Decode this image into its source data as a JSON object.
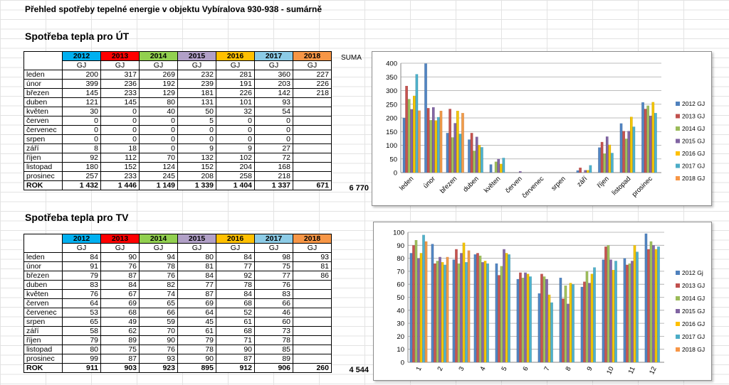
{
  "page_title": "Přehled spotřeby  tepelné energie v objektu Vybíralova 930-938 - sumárně",
  "suma_label": "SUMA",
  "years": [
    {
      "label": "2012",
      "color": "#00b0f0"
    },
    {
      "label": "2013",
      "color": "#ff0000"
    },
    {
      "label": "2014",
      "color": "#92d050"
    },
    {
      "label": "2015",
      "color": "#b1a0c7"
    },
    {
      "label": "2016",
      "color": "#ffc000"
    },
    {
      "label": "2017",
      "color": "#8ccbe6"
    },
    {
      "label": "2018",
      "color": "#f79646"
    }
  ],
  "unit": "GJ",
  "total_label": "ROK",
  "ut": {
    "title": "Spotřeba tepla pro ÚT",
    "rows": [
      {
        "month": "leden",
        "values": [
          "200",
          "317",
          "269",
          "232",
          "281",
          "360",
          "227"
        ]
      },
      {
        "month": "únor",
        "values": [
          "399",
          "236",
          "192",
          "239",
          "191",
          "203",
          "226"
        ]
      },
      {
        "month": "březen",
        "values": [
          "145",
          "233",
          "129",
          "181",
          "226",
          "142",
          "218"
        ]
      },
      {
        "month": "duben",
        "values": [
          "121",
          "145",
          "80",
          "131",
          "101",
          "93",
          ""
        ]
      },
      {
        "month": "květen",
        "values": [
          "30",
          "0",
          "40",
          "50",
          "32",
          "54",
          ""
        ]
      },
      {
        "month": "červen",
        "values": [
          "0",
          "0",
          "0",
          "5",
          "0",
          "0",
          ""
        ]
      },
      {
        "month": "červenec",
        "values": [
          "0",
          "0",
          "0",
          "0",
          "0",
          "0",
          ""
        ]
      },
      {
        "month": "srpen",
        "values": [
          "0",
          "0",
          "0",
          "0",
          "0",
          "0",
          ""
        ]
      },
      {
        "month": "září",
        "values": [
          "8",
          "18",
          "0",
          "9",
          "9",
          "27",
          ""
        ]
      },
      {
        "month": "říjen",
        "values": [
          "92",
          "112",
          "70",
          "132",
          "102",
          "72",
          ""
        ]
      },
      {
        "month": "listopad",
        "values": [
          "180",
          "152",
          "124",
          "152",
          "204",
          "168",
          ""
        ]
      },
      {
        "month": "prosinec",
        "values": [
          "257",
          "233",
          "245",
          "208",
          "258",
          "218",
          ""
        ]
      }
    ],
    "totals": [
      "1 432",
      "1 446",
      "1 149",
      "1 339",
      "1 404",
      "1 337",
      "671"
    ],
    "suma": "6 770"
  },
  "tv": {
    "title": "Spotřeba tepla pro TV",
    "rows": [
      {
        "month": "leden",
        "values": [
          "84",
          "90",
          "94",
          "80",
          "84",
          "98",
          "93"
        ]
      },
      {
        "month": "únor",
        "values": [
          "91",
          "76",
          "78",
          "81",
          "77",
          "75",
          "81"
        ]
      },
      {
        "month": "březen",
        "values": [
          "79",
          "87",
          "76",
          "84",
          "92",
          "77",
          "86"
        ]
      },
      {
        "month": "duben",
        "values": [
          "83",
          "84",
          "82",
          "77",
          "78",
          "76",
          ""
        ]
      },
      {
        "month": "květen",
        "values": [
          "76",
          "67",
          "74",
          "87",
          "84",
          "83",
          ""
        ]
      },
      {
        "month": "červen",
        "values": [
          "64",
          "69",
          "65",
          "69",
          "68",
          "66",
          ""
        ]
      },
      {
        "month": "červenec",
        "values": [
          "53",
          "68",
          "66",
          "64",
          "52",
          "46",
          ""
        ]
      },
      {
        "month": "srpen",
        "values": [
          "65",
          "49",
          "59",
          "45",
          "61",
          "60",
          ""
        ]
      },
      {
        "month": "září",
        "values": [
          "58",
          "62",
          "70",
          "61",
          "68",
          "73",
          ""
        ]
      },
      {
        "month": "říjen",
        "values": [
          "79",
          "89",
          "90",
          "79",
          "71",
          "78",
          ""
        ]
      },
      {
        "month": "listopad",
        "values": [
          "80",
          "75",
          "76",
          "78",
          "90",
          "85",
          ""
        ]
      },
      {
        "month": "prosinec",
        "values": [
          "99",
          "87",
          "93",
          "90",
          "87",
          "89",
          ""
        ]
      }
    ],
    "totals": [
      "911",
      "903",
      "923",
      "895",
      "912",
      "906",
      "260"
    ],
    "suma": "4 544"
  },
  "chart_data": [
    {
      "type": "bar",
      "categories": [
        "leden",
        "únor",
        "březen",
        "duben",
        "květen",
        "červen",
        "červenec",
        "srpen",
        "září",
        "říjen",
        "listopad",
        "prosinec"
      ],
      "ylim": [
        0,
        400
      ],
      "yticks": [
        0,
        50,
        100,
        150,
        200,
        250,
        300,
        350,
        400
      ],
      "grid": true,
      "legend": "right",
      "series": [
        {
          "name": "2012 GJ",
          "color": "#4f81bd",
          "values": [
            200,
            399,
            145,
            121,
            30,
            0,
            0,
            0,
            8,
            92,
            180,
            257
          ]
        },
        {
          "name": "2013 GJ",
          "color": "#c0504d",
          "values": [
            317,
            236,
            233,
            145,
            0,
            0,
            0,
            0,
            18,
            112,
            152,
            233
          ]
        },
        {
          "name": "2014 GJ",
          "color": "#9bbb59",
          "values": [
            269,
            192,
            129,
            80,
            40,
            0,
            0,
            0,
            0,
            70,
            124,
            245
          ]
        },
        {
          "name": "2015 GJ",
          "color": "#8064a2",
          "values": [
            232,
            239,
            181,
            131,
            50,
            5,
            0,
            0,
            9,
            132,
            152,
            208
          ]
        },
        {
          "name": "2016 GJ",
          "color": "#ffc000",
          "values": [
            281,
            191,
            226,
            101,
            32,
            0,
            0,
            0,
            9,
            102,
            204,
            258
          ]
        },
        {
          "name": "2017 GJ",
          "color": "#4bacc6",
          "values": [
            360,
            203,
            142,
            93,
            54,
            0,
            0,
            0,
            27,
            72,
            168,
            218
          ]
        },
        {
          "name": "2018 GJ",
          "color": "#f79646",
          "values": [
            227,
            226,
            218,
            null,
            null,
            null,
            null,
            null,
            null,
            null,
            null,
            null
          ]
        }
      ]
    },
    {
      "type": "bar",
      "categories": [
        "1",
        "2",
        "3",
        "4",
        "5",
        "6",
        "7",
        "8",
        "9",
        "10",
        "11",
        "12"
      ],
      "ylim": [
        0,
        100
      ],
      "yticks": [
        0,
        10,
        20,
        30,
        40,
        50,
        60,
        70,
        80,
        90,
        100
      ],
      "grid": true,
      "legend": "right",
      "series": [
        {
          "name": "2012 Gj",
          "color": "#4f81bd",
          "values": [
            84,
            91,
            79,
            83,
            76,
            64,
            53,
            65,
            58,
            79,
            80,
            99
          ]
        },
        {
          "name": "2013 GJ",
          "color": "#c0504d",
          "values": [
            90,
            76,
            87,
            84,
            67,
            69,
            68,
            49,
            62,
            89,
            75,
            87
          ]
        },
        {
          "name": "2014 GJ",
          "color": "#9bbb59",
          "values": [
            94,
            78,
            76,
            82,
            74,
            65,
            66,
            59,
            70,
            90,
            76,
            93
          ]
        },
        {
          "name": "2015 GJ",
          "color": "#8064a2",
          "values": [
            80,
            81,
            84,
            77,
            87,
            69,
            64,
            45,
            61,
            79,
            78,
            90
          ]
        },
        {
          "name": "2016 GJ",
          "color": "#ffc000",
          "values": [
            84,
            77,
            92,
            78,
            84,
            68,
            52,
            61,
            68,
            71,
            90,
            87
          ]
        },
        {
          "name": "2017 GJ",
          "color": "#4bacc6",
          "values": [
            98,
            75,
            77,
            76,
            83,
            66,
            46,
            60,
            73,
            78,
            85,
            89
          ]
        },
        {
          "name": "2018 GJ",
          "color": "#f79646",
          "values": [
            93,
            81,
            86,
            null,
            null,
            null,
            null,
            null,
            null,
            null,
            null,
            null
          ]
        }
      ]
    }
  ]
}
